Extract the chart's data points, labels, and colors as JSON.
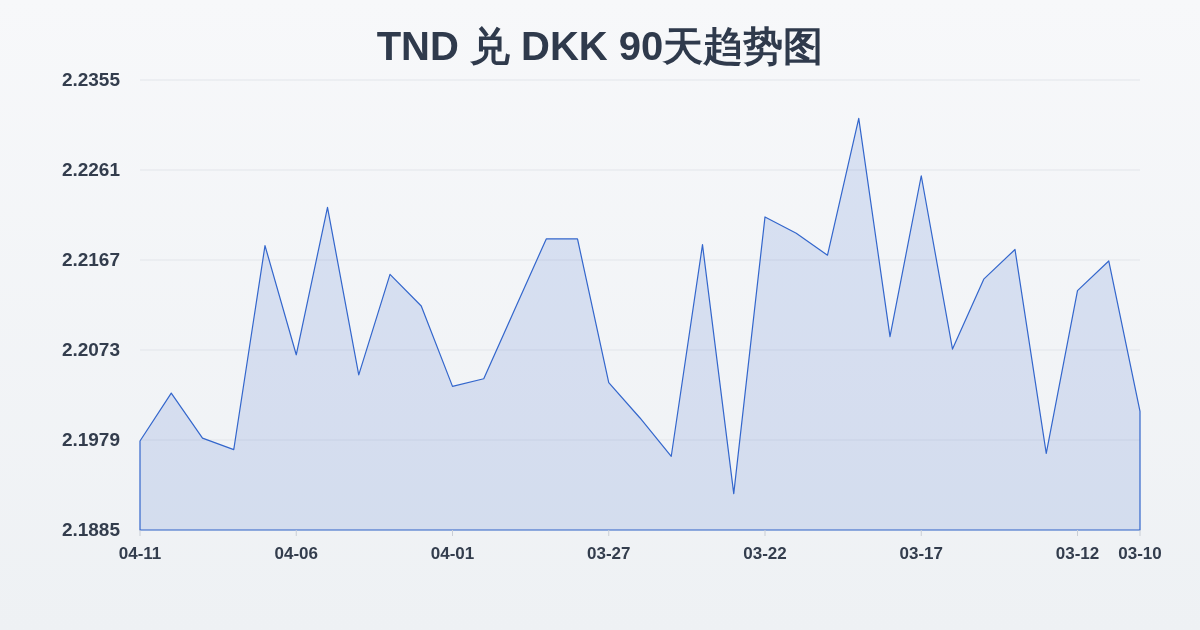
{
  "chart_data": {
    "type": "area",
    "title": "TND 兑 DKK 90天趋势图",
    "categories": [
      "04-11",
      null,
      null,
      null,
      null,
      "04-06",
      null,
      null,
      null,
      null,
      "04-01",
      null,
      null,
      null,
      null,
      "03-27",
      null,
      null,
      null,
      null,
      "03-22",
      null,
      null,
      null,
      null,
      "03-17",
      null,
      null,
      null,
      null,
      "03-12",
      null,
      "03-10"
    ],
    "values": [
      2.1978,
      2.2028,
      2.1981,
      2.1969,
      2.2182,
      2.2068,
      2.2222,
      2.2047,
      2.2152,
      2.2119,
      2.2035,
      2.2043,
      2.2116,
      2.2189,
      2.2189,
      2.2039,
      2.2002,
      2.1962,
      2.2183,
      2.1923,
      2.2212,
      2.2195,
      2.2172,
      2.2315,
      2.2087,
      2.2255,
      2.2074,
      2.2147,
      2.2178,
      2.1965,
      2.2135,
      2.2166,
      2.2009
    ],
    "color": "#3366cc",
    "ylim": [
      2.1885,
      2.2355
    ],
    "yticks": [
      2.1885,
      2.1979,
      2.2073,
      2.2167,
      2.2261,
      2.2355
    ],
    "grid": "y"
  }
}
